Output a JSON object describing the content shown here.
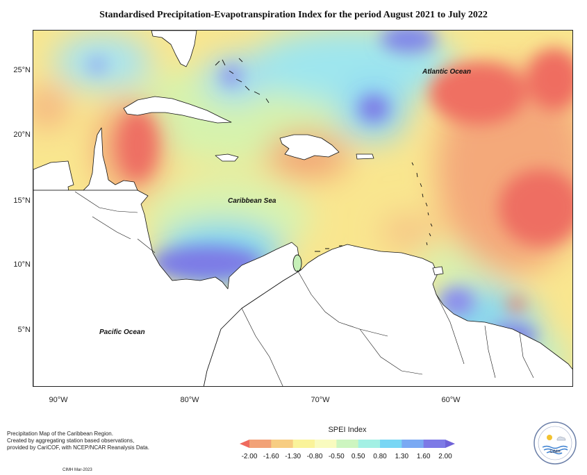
{
  "title": "Standardised Precipitation-Evapotranspiration Index for the period August 2021 to July 2022",
  "map": {
    "lat_labels": [
      "25°N",
      "20°N",
      "15°N",
      "10°N",
      "5°N"
    ],
    "lon_labels": [
      "90°W",
      "80°W",
      "70°W",
      "60°W"
    ],
    "region_labels": {
      "atlantic": "Atlantic Ocean",
      "caribbean": "Caribbean Sea",
      "pacific": "Pacific Ocean"
    }
  },
  "legend": {
    "title": "SPEI Index",
    "ticks": [
      "-2.00",
      "-1.60",
      "-1.30",
      "-0.80",
      "-0.50",
      "0.50",
      "0.80",
      "1.30",
      "1.60",
      "2.00"
    ],
    "colors": [
      "#ef6a5e",
      "#f2a277",
      "#f7cd82",
      "#faf39a",
      "#f9fbbf",
      "#cdf5c0",
      "#a3f0e4",
      "#79d6f4",
      "#7aa9f3",
      "#7d7ae6",
      "#6f62d8"
    ]
  },
  "notes": {
    "line1": "Precipitation Map of the Caribbean Region.",
    "line2": "Created by aggregating station based observations,",
    "line3": "provided by CariCOF, with NCEP/NCAR Reanalysis Data.",
    "credit": "CIMH Mar-2023"
  },
  "logo": {
    "name": "CIMH"
  }
}
